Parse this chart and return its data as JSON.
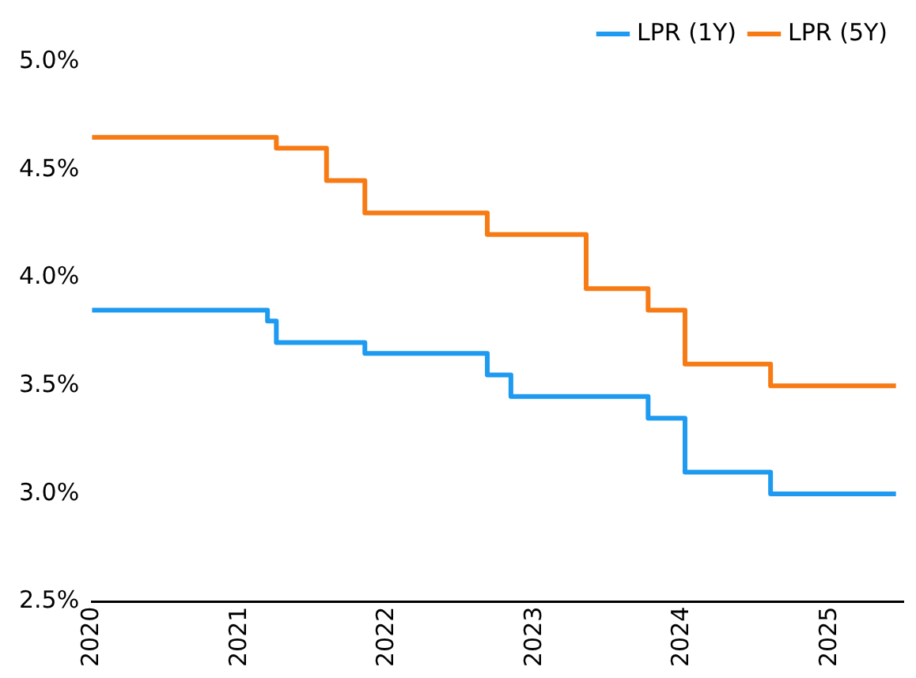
{
  "chart_data": {
    "type": "step",
    "xlim": [
      2020,
      2025.5
    ],
    "xticks": [
      2020,
      2021,
      2022,
      2023,
      2024,
      2025
    ],
    "ylim": [
      2.5,
      5.0
    ],
    "yticks": [
      {
        "value": 2.5,
        "label": "2.5%"
      },
      {
        "value": 3.0,
        "label": "3.0%"
      },
      {
        "value": 3.5,
        "label": "3.5%"
      },
      {
        "value": 4.0,
        "label": "4.0%"
      },
      {
        "value": 4.5,
        "label": "4.5%"
      },
      {
        "value": 5.0,
        "label": "5.0%"
      }
    ],
    "grid": false,
    "legend": "top right",
    "marker": "none",
    "line_style": "solid",
    "series": [
      {
        "name": "LPR (1Y)",
        "color": "#1e9bf0",
        "x": [
          2020,
          2021.19,
          2021.25,
          2021.85,
          2022.68,
          2022.84,
          2023.77,
          2024.02,
          2024.6,
          2025.45
        ],
        "values": [
          3.85,
          3.8,
          3.7,
          3.65,
          3.55,
          3.45,
          3.35,
          3.1,
          3.0,
          3.0
        ]
      },
      {
        "name": "LPR (5Y)",
        "color": "#f77b14",
        "x": [
          2020,
          2021.25,
          2021.59,
          2021.85,
          2022.68,
          2023.35,
          2023.77,
          2024.02,
          2024.6,
          2025.45
        ],
        "values": [
          4.65,
          4.6,
          4.45,
          4.3,
          4.2,
          3.95,
          3.85,
          3.6,
          3.5,
          3.5
        ]
      }
    ]
  }
}
